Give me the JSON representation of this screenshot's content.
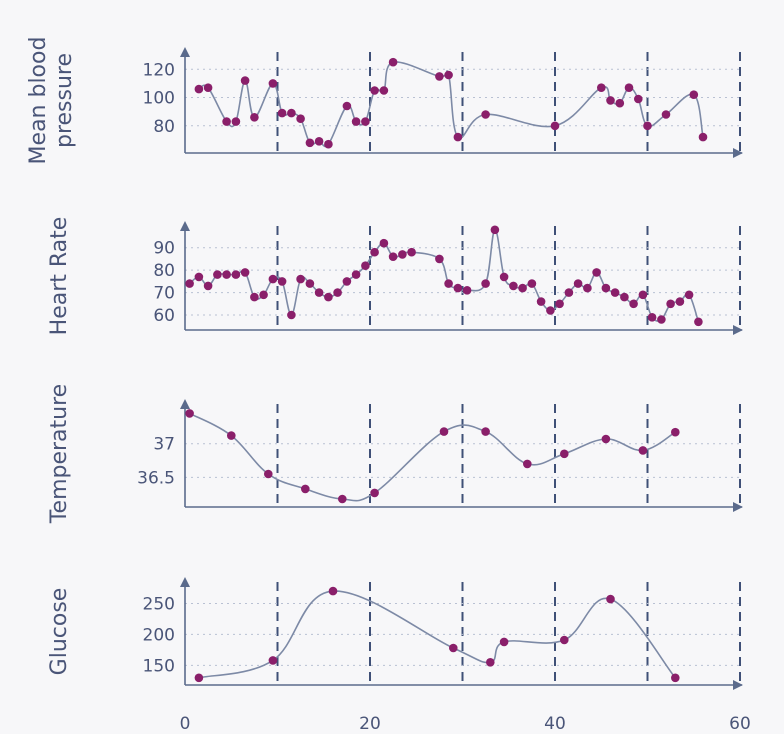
{
  "chart_data": {
    "type": "line",
    "xlim": [
      0,
      60
    ],
    "x_ticks": [
      0,
      20,
      40,
      60
    ],
    "vertical_markers": [
      10,
      20,
      30,
      40,
      50,
      60
    ],
    "colors": {
      "point": "#8a1f6a",
      "line": "#7d8aa6",
      "axis": "#5b6b8c",
      "marker": "#3f5077"
    },
    "panels": [
      {
        "ylabel": [
          "Mean blood",
          "pressure"
        ],
        "ylim": [
          65,
          128
        ],
        "y_ticks": [
          80,
          100,
          120
        ],
        "x": [
          1.5,
          2.5,
          4.5,
          5.5,
          6.5,
          7.5,
          9.5,
          10.5,
          11.5,
          12.5,
          13.5,
          14.5,
          15.5,
          17.5,
          18.5,
          19.5,
          20.5,
          21.5,
          22.5,
          27.5,
          28.5,
          29.5,
          32.5,
          40,
          45,
          46,
          47,
          48,
          49,
          50,
          52,
          55,
          56
        ],
        "y": [
          106,
          107,
          83,
          83,
          112,
          86,
          110,
          89,
          89,
          85,
          68,
          69,
          67,
          94,
          83,
          83,
          105,
          105,
          125,
          115,
          116,
          72,
          88,
          80,
          107,
          98,
          96,
          107,
          99,
          80,
          88,
          102,
          72
        ]
      },
      {
        "ylabel": [
          "Heart Rate"
        ],
        "ylim": [
          56,
          97
        ],
        "y_ticks": [
          60,
          70,
          80,
          90
        ],
        "x": [
          0.5,
          1.5,
          2.5,
          3.5,
          4.5,
          5.5,
          6.5,
          7.5,
          8.5,
          9.5,
          10.5,
          11.5,
          12.5,
          13.5,
          14.5,
          15.5,
          16.5,
          17.5,
          18.5,
          19.5,
          20.5,
          21.5,
          22.5,
          23.5,
          24.5,
          27.5,
          28.5,
          29.5,
          30.5,
          32.5,
          33.5,
          34.5,
          35.5,
          36.5,
          37.5,
          38.5,
          39.5,
          40.5,
          41.5,
          42.5,
          43.5,
          44.5,
          45.5,
          46.5,
          47.5,
          48.5,
          49.5,
          50.5,
          51.5,
          52.5,
          53.5,
          54.5,
          55.5
        ],
        "y": [
          74,
          77,
          73,
          78,
          78,
          78,
          79,
          68,
          69,
          76,
          75,
          60,
          76,
          74,
          70,
          68,
          70,
          75,
          78,
          82,
          88,
          92,
          86,
          87,
          88,
          85,
          74,
          72,
          71,
          74,
          98,
          77,
          73,
          72,
          74,
          66,
          62,
          65,
          70,
          74,
          72,
          79,
          72,
          70,
          68,
          65,
          69,
          59,
          58,
          65,
          66,
          69,
          57
        ]
      },
      {
        "ylabel": [
          "Temperature"
        ],
        "ylim": [
          36.15,
          37.5
        ],
        "y_ticks": [
          36.5,
          37
        ],
        "x": [
          0.5,
          5,
          9,
          13,
          17,
          20.5,
          28,
          32.5,
          37,
          41,
          45.5,
          49.5,
          53
        ],
        "y": [
          37.45,
          37.12,
          36.55,
          36.33,
          36.18,
          36.27,
          37.18,
          37.18,
          36.7,
          36.85,
          37.07,
          36.9,
          37.17
        ]
      },
      {
        "ylabel": [
          "Glucose"
        ],
        "ylim": [
          128,
          275
        ],
        "y_ticks": [
          150,
          200,
          250
        ],
        "x": [
          1.5,
          9.5,
          16,
          29,
          33,
          34.5,
          41,
          46,
          53
        ],
        "y": [
          130,
          158,
          270,
          178,
          155,
          188,
          191,
          257,
          130
        ]
      }
    ]
  }
}
